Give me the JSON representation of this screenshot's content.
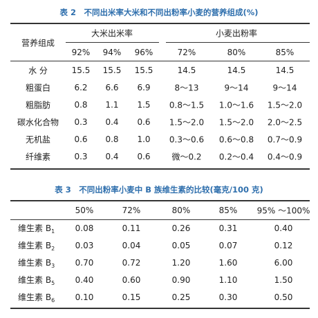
{
  "table2": {
    "title": "表 2　不同出米率大米和不同出粉率小麦的营养组成(%)",
    "corner": "营养组成",
    "groups": [
      "大米出米率",
      "小麦出粉率"
    ],
    "columns": [
      "92%",
      "94%",
      "96%",
      "72%",
      "80%",
      "85%"
    ],
    "rows": [
      [
        "水 分",
        "15.5",
        "15.5",
        "15.5",
        "14.5",
        "14.5",
        "14.5"
      ],
      [
        "粗蛋白",
        "6.2",
        "6.6",
        "6.9",
        "8～13",
        "9～14",
        "9～14"
      ],
      [
        "粗脂肪",
        "0.8",
        "1.1",
        "1.5",
        "0.8～1.5",
        "1.0～1.6",
        "1.5～2.0"
      ],
      [
        "碳水化合物",
        "0.3",
        "0.4",
        "0.6",
        "1.5～2.0",
        "1.5～2.0",
        "2.0～2.5"
      ],
      [
        "无机盐",
        "0.6",
        "0.8",
        "1.0",
        "0.3～0.6",
        "0.6～0.8",
        "0.7～0.9"
      ],
      [
        "纤维素",
        "0.3",
        "0.4",
        "0.6",
        "微～0.2",
        "0.2～0.4",
        "0.4～0.9"
      ]
    ]
  },
  "table3": {
    "title": "表 3　不同出粉率小麦中 B 族维生素的比较(毫克/100 克)",
    "columns": [
      "50%",
      "72%",
      "80%",
      "85%",
      "95% ～100%"
    ],
    "rows": [
      {
        "label": "维生素 B",
        "sub": "1",
        "values": [
          "0.08",
          "0.11",
          "0.26",
          "0.31",
          "0.40"
        ]
      },
      {
        "label": "维生素 B",
        "sub": "2",
        "values": [
          "0.03",
          "0.04",
          "0.05",
          "0.07",
          "0.12"
        ]
      },
      {
        "label": "维生素 B",
        "sub": "3",
        "values": [
          "0.70",
          "0.72",
          "1.20",
          "1.60",
          "6.00"
        ]
      },
      {
        "label": "维生素 B",
        "sub": "5",
        "values": [
          "0.40",
          "0.60",
          "0.90",
          "1.10",
          "1.50"
        ]
      },
      {
        "label": "维生素 B",
        "sub": "6",
        "values": [
          "0.10",
          "0.15",
          "0.25",
          "0.30",
          "0.50"
        ]
      }
    ]
  }
}
